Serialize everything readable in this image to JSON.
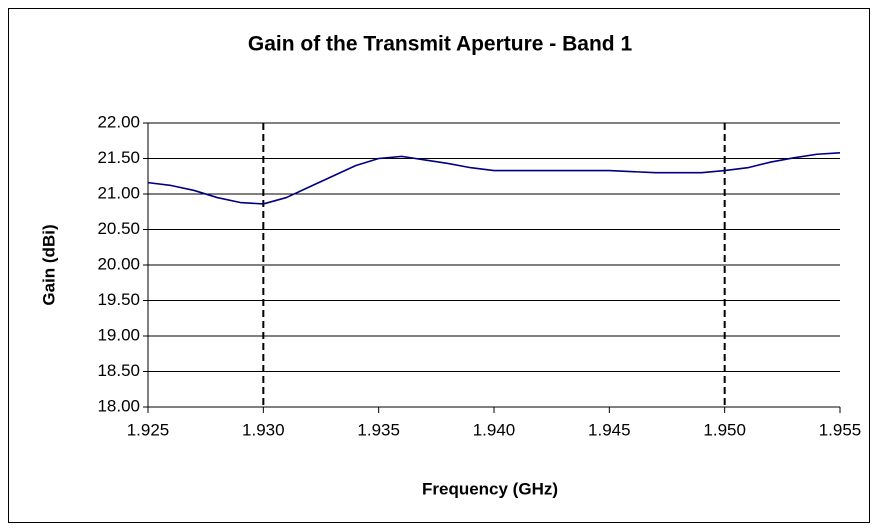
{
  "chart_data": {
    "type": "line",
    "title": "Gain of the Transmit Aperture - Band 1",
    "x_label": "Frequency (GHz)",
    "y_label": "Gain (dBi)",
    "x": [
      1.925,
      1.926,
      1.927,
      1.928,
      1.929,
      1.93,
      1.931,
      1.932,
      1.933,
      1.934,
      1.935,
      1.936,
      1.937,
      1.938,
      1.939,
      1.94,
      1.942,
      1.945,
      1.947,
      1.949,
      1.95,
      1.951,
      1.952,
      1.953,
      1.954,
      1.955
    ],
    "series": [
      {
        "name": "Gain",
        "color": "#000080",
        "values": [
          21.16,
          21.12,
          21.05,
          20.95,
          20.88,
          20.86,
          20.95,
          21.1,
          21.25,
          21.4,
          21.5,
          21.53,
          21.48,
          21.43,
          21.37,
          21.33,
          21.33,
          21.33,
          21.3,
          21.3,
          21.33,
          21.37,
          21.45,
          21.51,
          21.56,
          21.58
        ]
      }
    ],
    "reference_lines": [
      1.93,
      1.95
    ],
    "xlim": [
      1.925,
      1.955
    ],
    "xticks": [
      1.925,
      {
        "value": 1.93,
        "label": "1.930"
      },
      1.935,
      {
        "value": 1.94,
        "label": "1.940"
      },
      1.945,
      {
        "value": 1.95,
        "label": "1.950"
      },
      1.955
    ],
    "ylim": [
      18,
      22
    ],
    "yticks": [
      {
        "value": 18,
        "label": "18.00"
      },
      {
        "value": 18.5,
        "label": "18.50"
      },
      {
        "value": 19,
        "label": "19.00"
      },
      {
        "value": 19.5,
        "label": "19.50"
      },
      {
        "value": 20,
        "label": "20.00"
      },
      {
        "value": 20.5,
        "label": "20.50"
      },
      {
        "value": 21,
        "label": "21.00"
      },
      {
        "value": 21.5,
        "label": "21.50"
      },
      {
        "value": 22,
        "label": "22.00"
      }
    ],
    "grid": true
  }
}
